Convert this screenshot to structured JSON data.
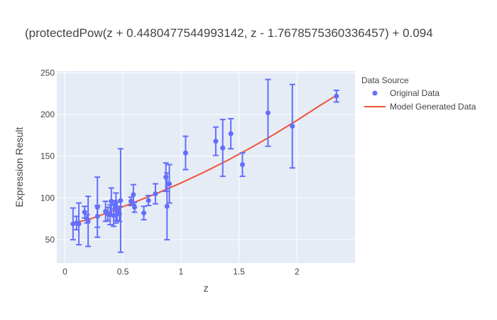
{
  "chart_data": {
    "type": "scatter",
    "title": "(protectedPow(z + 0.4480477544993142, z - 1.7678575360336457) + 0.094",
    "xlabel": "z",
    "ylabel": "Expression Result",
    "xlim": [
      -0.07,
      2.5
    ],
    "ylim": [
      22,
      252
    ],
    "xticks": [
      0,
      0.5,
      1,
      1.5,
      2
    ],
    "xtick_labels": [
      "0",
      "0.5",
      "1",
      "1.5",
      "2"
    ],
    "yticks": [
      50,
      100,
      150,
      200,
      250
    ],
    "ytick_labels": [
      "50",
      "100",
      "150",
      "200",
      "250"
    ],
    "grid": true,
    "legend": {
      "title": "Data Source",
      "placement": "right",
      "entries": [
        "Original Data",
        "Model Generated Data"
      ]
    },
    "colors": {
      "original": "#636efa",
      "model": "#ef553b",
      "plot_bg": "#e5ecf6",
      "grid": "#ffffff",
      "text": "#444444"
    },
    "series": [
      {
        "name": "Original Data",
        "mode": "markers+error_y",
        "points": [
          {
            "x": 0.07,
            "y": 69,
            "err": 19
          },
          {
            "x": 0.1,
            "y": 70,
            "err": 8
          },
          {
            "x": 0.12,
            "y": 69,
            "err": 25
          },
          {
            "x": 0.17,
            "y": 83,
            "err": 7
          },
          {
            "x": 0.19,
            "y": 75,
            "err": 5
          },
          {
            "x": 0.2,
            "y": 72,
            "err": 30
          },
          {
            "x": 0.28,
            "y": 78,
            "err": 13
          },
          {
            "x": 0.28,
            "y": 89,
            "err": 36
          },
          {
            "x": 0.35,
            "y": 84,
            "err": 12
          },
          {
            "x": 0.37,
            "y": 81,
            "err": 8
          },
          {
            "x": 0.39,
            "y": 80,
            "err": 12
          },
          {
            "x": 0.4,
            "y": 96,
            "err": 16
          },
          {
            "x": 0.42,
            "y": 79,
            "err": 13
          },
          {
            "x": 0.43,
            "y": 92,
            "err": 5
          },
          {
            "x": 0.44,
            "y": 88,
            "err": 18
          },
          {
            "x": 0.45,
            "y": 84,
            "err": 11
          },
          {
            "x": 0.47,
            "y": 81,
            "err": 9
          },
          {
            "x": 0.48,
            "y": 97,
            "err": 62
          },
          {
            "x": 0.57,
            "y": 96,
            "err": 5
          },
          {
            "x": 0.59,
            "y": 104,
            "err": 12
          },
          {
            "x": 0.6,
            "y": 89,
            "err": 6
          },
          {
            "x": 0.68,
            "y": 82,
            "err": 8
          },
          {
            "x": 0.72,
            "y": 97,
            "err": 6
          },
          {
            "x": 0.78,
            "y": 105,
            "err": 12
          },
          {
            "x": 0.87,
            "y": 125,
            "err": 17
          },
          {
            "x": 0.88,
            "y": 90,
            "err": 40
          },
          {
            "x": 0.9,
            "y": 117,
            "err": 23
          },
          {
            "x": 1.04,
            "y": 154,
            "err": 20
          },
          {
            "x": 1.3,
            "y": 168,
            "err": 17
          },
          {
            "x": 1.36,
            "y": 160,
            "err": 34
          },
          {
            "x": 1.43,
            "y": 177,
            "err": 18
          },
          {
            "x": 1.53,
            "y": 140,
            "err": 14
          },
          {
            "x": 1.75,
            "y": 202,
            "err": 40
          },
          {
            "x": 1.96,
            "y": 186,
            "err": 50
          },
          {
            "x": 2.34,
            "y": 222,
            "err": 7
          }
        ]
      },
      {
        "name": "Model Generated Data",
        "mode": "lines",
        "x": [
          0.07,
          0.2,
          0.4,
          0.6,
          0.8,
          1.0,
          1.2,
          1.4,
          1.6,
          1.8,
          2.0,
          2.2,
          2.34
        ],
        "y": [
          70,
          74,
          84,
          95,
          106,
          118,
          131,
          145,
          160,
          176,
          193,
          211,
          223
        ]
      }
    ]
  }
}
